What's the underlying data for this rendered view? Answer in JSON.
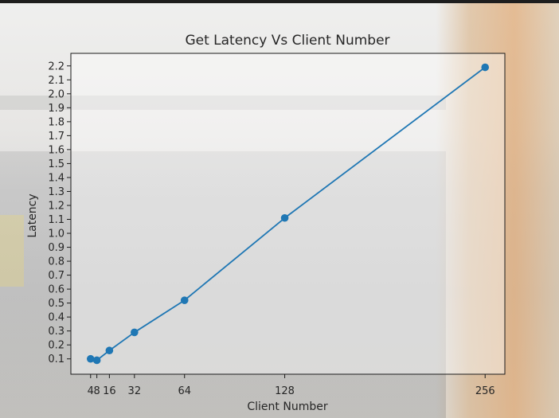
{
  "chart_data": {
    "type": "line",
    "title": "Get Latency Vs Client Number",
    "xlabel": "Client Number",
    "ylabel": "Latency",
    "x_ticks": [
      4,
      8,
      16,
      32,
      64,
      128,
      256
    ],
    "x_tick_labels": [
      "4",
      "8",
      "16",
      "32",
      "64",
      "128",
      "256"
    ],
    "y_ticks": [
      0.1,
      0.2,
      0.3,
      0.4,
      0.5,
      0.6,
      0.7,
      0.8,
      0.9,
      1.0,
      1.1,
      1.2,
      1.3,
      1.4,
      1.5,
      1.6,
      1.7,
      1.8,
      1.9,
      2.0,
      2.1,
      2.2
    ],
    "y_tick_labels": [
      "0.1",
      "0.2",
      "0.3",
      "0.4",
      "0.5",
      "0.6",
      "0.7",
      "0.8",
      "0.9",
      "1.0",
      "1.1",
      "1.2",
      "1.3",
      "1.4",
      "1.5",
      "1.6",
      "1.7",
      "1.8",
      "1.9",
      "2.0",
      "2.1",
      "2.2"
    ],
    "xlim": [
      -8.6,
      268.6
    ],
    "ylim": [
      -0.01,
      2.29
    ],
    "grid": false,
    "series": [
      {
        "x": [
          4,
          8,
          16,
          32,
          64,
          128,
          256
        ],
        "y": [
          0.1,
          0.09,
          0.16,
          0.29,
          0.52,
          1.11,
          2.19
        ],
        "color": "#1f77b4",
        "marker": "circle"
      }
    ]
  }
}
